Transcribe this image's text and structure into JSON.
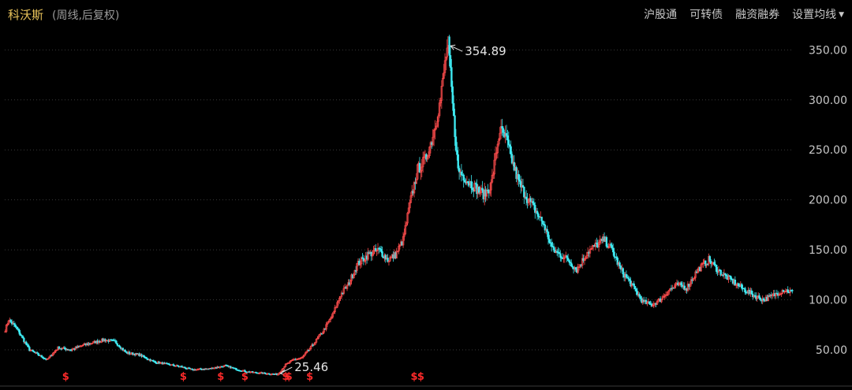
{
  "header": {
    "stock_name": "科沃斯",
    "period": "(周线,后复权)",
    "links": [
      "沪股通",
      "可转债",
      "融资融券",
      "设置均线"
    ]
  },
  "colors": {
    "up": "#ff4d4d",
    "down": "#3ee8f0",
    "grid": "#3a3a3a",
    "text": "#c8c8c8",
    "dividend": "#ff2a2a"
  },
  "chart_data": {
    "type": "candlestick",
    "title": "",
    "ylim": [
      20,
      370
    ],
    "y_ticks": [
      "50.00",
      "100.00",
      "150.00",
      "200.00",
      "250.00",
      "300.00",
      "350.00"
    ],
    "y_tick_values": [
      50,
      100,
      150,
      200,
      250,
      300,
      350
    ],
    "grid": true,
    "annotations": [
      {
        "label": "354.89",
        "value": 354.89,
        "type": "high"
      },
      {
        "label": "25.46",
        "value": 25.46,
        "type": "low"
      }
    ],
    "dividend_marker": "$",
    "dividend_marker_bars": [
      55,
      162,
      196,
      218,
      255,
      258,
      277,
      372,
      378
    ],
    "price_path": [
      [
        0,
        70
      ],
      [
        3,
        80
      ],
      [
        10,
        72
      ],
      [
        22,
        50
      ],
      [
        30,
        45
      ],
      [
        38,
        40
      ],
      [
        48,
        52
      ],
      [
        60,
        50
      ],
      [
        72,
        55
      ],
      [
        90,
        60
      ],
      [
        100,
        58
      ],
      [
        110,
        47
      ],
      [
        122,
        45
      ],
      [
        135,
        38
      ],
      [
        150,
        35
      ],
      [
        160,
        33
      ],
      [
        170,
        30
      ],
      [
        185,
        31
      ],
      [
        200,
        34
      ],
      [
        212,
        30
      ],
      [
        220,
        28
      ],
      [
        230,
        27
      ],
      [
        240,
        26
      ],
      [
        248,
        25.46
      ],
      [
        255,
        35
      ],
      [
        262,
        40
      ],
      [
        270,
        42
      ],
      [
        280,
        55
      ],
      [
        290,
        70
      ],
      [
        298,
        85
      ],
      [
        305,
        105
      ],
      [
        312,
        115
      ],
      [
        320,
        135
      ],
      [
        330,
        145
      ],
      [
        340,
        150
      ],
      [
        348,
        140
      ],
      [
        355,
        145
      ],
      [
        362,
        160
      ],
      [
        368,
        195
      ],
      [
        375,
        230
      ],
      [
        382,
        240
      ],
      [
        388,
        260
      ],
      [
        396,
        300
      ],
      [
        401,
        345
      ],
      [
        403,
        354.89
      ],
      [
        408,
        280
      ],
      [
        412,
        230
      ],
      [
        420,
        220
      ],
      [
        430,
        210
      ],
      [
        436,
        205
      ],
      [
        442,
        215
      ],
      [
        450,
        270
      ],
      [
        456,
        260
      ],
      [
        462,
        235
      ],
      [
        468,
        215
      ],
      [
        476,
        200
      ],
      [
        482,
        190
      ],
      [
        490,
        175
      ],
      [
        498,
        150
      ],
      [
        505,
        145
      ],
      [
        512,
        140
      ],
      [
        520,
        130
      ],
      [
        530,
        148
      ],
      [
        538,
        155
      ],
      [
        545,
        160
      ],
      [
        552,
        150
      ],
      [
        560,
        130
      ],
      [
        570,
        115
      ],
      [
        580,
        98
      ],
      [
        588,
        95
      ],
      [
        596,
        100
      ],
      [
        604,
        110
      ],
      [
        612,
        115
      ],
      [
        620,
        112
      ],
      [
        630,
        130
      ],
      [
        640,
        140
      ],
      [
        650,
        128
      ],
      [
        660,
        120
      ],
      [
        670,
        112
      ],
      [
        680,
        105
      ],
      [
        690,
        100
      ],
      [
        700,
        105
      ],
      [
        708,
        110
      ],
      [
        716,
        108
      ]
    ]
  }
}
